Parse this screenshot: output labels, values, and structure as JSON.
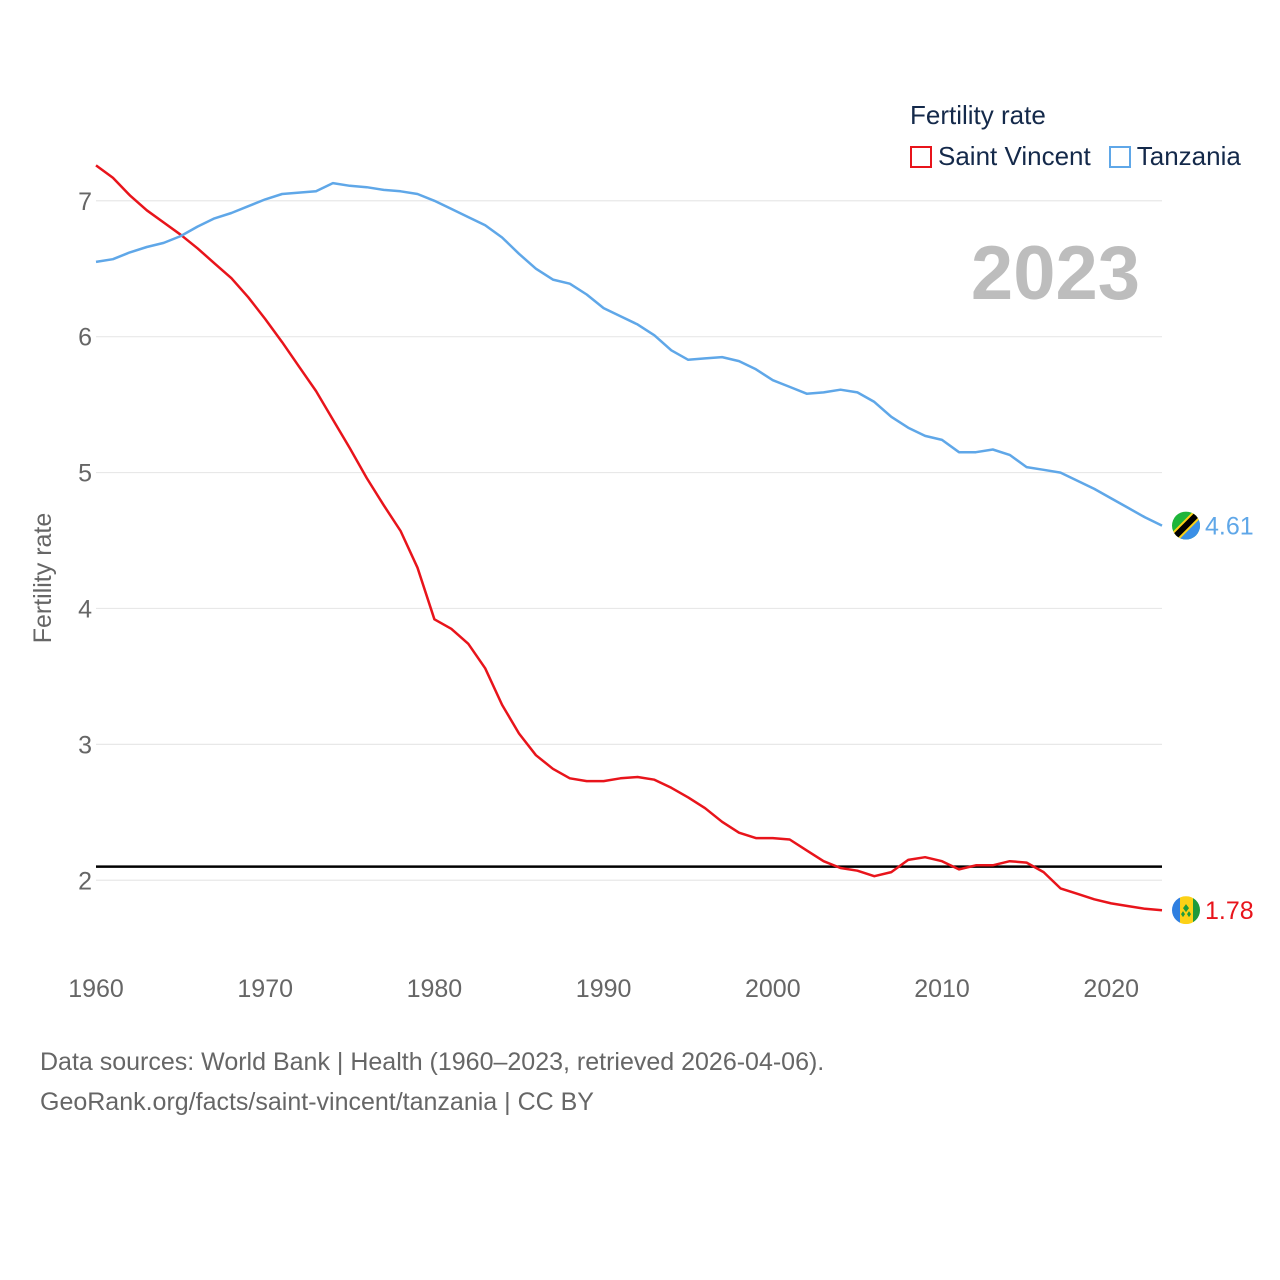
{
  "legend": {
    "title": "Fertility rate",
    "items": [
      {
        "label": "Saint Vincent",
        "color": "#e8141b"
      },
      {
        "label": "Tanzania",
        "color": "#5fa7e8"
      }
    ]
  },
  "year_label": "2023",
  "footer": {
    "line1": "Data sources: World Bank | Health (1960–2023, retrieved 2026-04-06).",
    "line2": "GeoRank.org/facts/saint-vincent/tanzania | CC BY"
  },
  "chart_data": {
    "type": "line",
    "title": "Fertility rate",
    "xlabel": "",
    "ylabel": "Fertility rate",
    "xlim": [
      1960,
      2023
    ],
    "ylim": [
      1.45,
      7.3
    ],
    "x_ticks": [
      1960,
      1970,
      1980,
      1990,
      2000,
      2010,
      2020
    ],
    "y_ticks": [
      2,
      3,
      4,
      5,
      6,
      7
    ],
    "grid": true,
    "reference_line": {
      "y": 2.1,
      "color": "#000000"
    },
    "x": [
      1960,
      1961,
      1962,
      1963,
      1964,
      1965,
      1966,
      1967,
      1968,
      1969,
      1970,
      1971,
      1972,
      1973,
      1974,
      1975,
      1976,
      1977,
      1978,
      1979,
      1980,
      1981,
      1982,
      1983,
      1984,
      1985,
      1986,
      1987,
      1988,
      1989,
      1990,
      1991,
      1992,
      1993,
      1994,
      1995,
      1996,
      1997,
      1998,
      1999,
      2000,
      2001,
      2002,
      2003,
      2004,
      2005,
      2006,
      2007,
      2008,
      2009,
      2010,
      2011,
      2012,
      2013,
      2014,
      2015,
      2016,
      2017,
      2018,
      2019,
      2020,
      2021,
      2022,
      2023
    ],
    "series": [
      {
        "name": "Saint Vincent",
        "color": "#e8141b",
        "end_label": "1.78",
        "flag": "saint-vincent-flag",
        "values": [
          7.26,
          7.17,
          7.04,
          6.93,
          6.84,
          6.75,
          6.65,
          6.54,
          6.43,
          6.29,
          6.13,
          5.96,
          5.78,
          5.6,
          5.39,
          5.18,
          4.96,
          4.76,
          4.57,
          4.3,
          3.92,
          3.85,
          3.74,
          3.56,
          3.29,
          3.08,
          2.92,
          2.82,
          2.75,
          2.73,
          2.73,
          2.75,
          2.76,
          2.74,
          2.68,
          2.61,
          2.53,
          2.43,
          2.35,
          2.31,
          2.31,
          2.3,
          2.22,
          2.14,
          2.09,
          2.07,
          2.03,
          2.06,
          2.15,
          2.17,
          2.14,
          2.08,
          2.11,
          2.11,
          2.14,
          2.13,
          2.06,
          1.94,
          1.9,
          1.86,
          1.83,
          1.81,
          1.79,
          1.78
        ]
      },
      {
        "name": "Tanzania",
        "color": "#5fa7e8",
        "end_label": "4.61",
        "flag": "tanzania-flag",
        "values": [
          6.55,
          6.57,
          6.62,
          6.66,
          6.69,
          6.74,
          6.81,
          6.87,
          6.91,
          6.96,
          7.01,
          7.05,
          7.06,
          7.07,
          7.13,
          7.11,
          7.1,
          7.08,
          7.07,
          7.05,
          7.0,
          6.94,
          6.88,
          6.82,
          6.73,
          6.61,
          6.5,
          6.42,
          6.39,
          6.31,
          6.21,
          6.15,
          6.09,
          6.01,
          5.9,
          5.83,
          5.84,
          5.85,
          5.82,
          5.76,
          5.68,
          5.63,
          5.58,
          5.59,
          5.61,
          5.59,
          5.52,
          5.41,
          5.33,
          5.27,
          5.24,
          5.15,
          5.15,
          5.17,
          5.13,
          5.04,
          5.02,
          5.0,
          4.94,
          4.88,
          4.81,
          4.74,
          4.67,
          4.61
        ]
      }
    ]
  }
}
